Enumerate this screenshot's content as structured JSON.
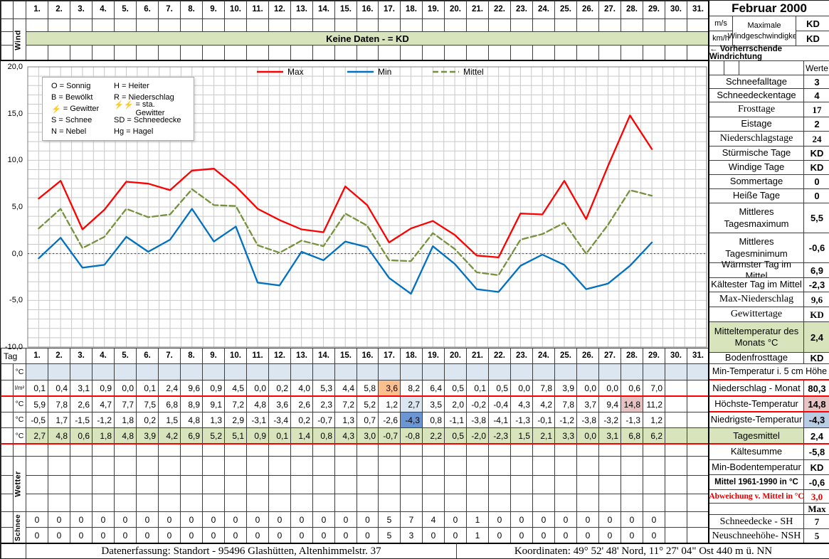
{
  "month_title": "Februar 2000",
  "days": [
    "1.",
    "2.",
    "3.",
    "4.",
    "5.",
    "6.",
    "7.",
    "8.",
    "9.",
    "10.",
    "11.",
    "12.",
    "13.",
    "14.",
    "15.",
    "16.",
    "17.",
    "18.",
    "19.",
    "20.",
    "21.",
    "22.",
    "23.",
    "24.",
    "25.",
    "26.",
    "27.",
    "28.",
    "29.",
    "30.",
    "31."
  ],
  "wind": {
    "label": "Wind",
    "banner": "Keine Daten -  = KD",
    "units": [
      "m/s",
      "km/h"
    ],
    "max_label": "Maximale Windgeschwindigkeit",
    "max_values": [
      "KD",
      "KD"
    ],
    "direction": "←  Vorherrschende Windrichtung"
  },
  "werte_header": "Werte",
  "stats": [
    {
      "label": "Schneefalltage",
      "value": "3"
    },
    {
      "label": "Schneedeckentage",
      "value": "4"
    },
    {
      "label": "Frosttage",
      "value": "17",
      "serif": true
    },
    {
      "label": "Eistage",
      "value": "2"
    },
    {
      "label": "Niederschlagstage",
      "value": "24",
      "serif": true
    },
    {
      "label": "Stürmische Tage",
      "value": "KD"
    },
    {
      "label": "Windige Tage",
      "value": "KD"
    },
    {
      "label": "Sommertage",
      "value": "0"
    },
    {
      "label": "Heiße Tage",
      "value": "0"
    },
    {
      "label": "Mittleres Tagesmaximum",
      "value": "5,5"
    },
    {
      "label": "Mittleres Tagesminimum",
      "value": "-0,6"
    },
    {
      "label": "Wärmster Tag im Mittel",
      "value": "6,9"
    },
    {
      "label": "Kältester Tag im Mittel",
      "value": "-2,3"
    },
    {
      "label": "Max-Niederschlag",
      "value": "9,6",
      "serif": true
    },
    {
      "label": "Gewittertage",
      "value": "KD",
      "serif": true
    },
    {
      "label": "Mitteltemperatur des Monats °C",
      "value": "2,4",
      "green": true
    },
    {
      "label": "Bodenfrosttage",
      "value": "KD"
    }
  ],
  "stats2": [
    {
      "label": "Min-Temperatur i. 5 cm Höhe",
      "span": true
    },
    {
      "label": "Niederschlag - Monat",
      "value": "80,3",
      "redTop": true,
      "redBottom": true
    },
    {
      "label": "Höchste-Temperatur",
      "value": "14,8",
      "valCls": "pink-bg",
      "redBottom": true
    },
    {
      "label": "Niedrigste-Temperatur",
      "value": "-4,3",
      "valCls": "lblue-bg"
    },
    {
      "label": "Tagesmittel",
      "value": "2,4",
      "labelCls": "green-bg",
      "redBottom": true
    },
    {
      "label": "Kältesumme",
      "value": "-5,8"
    },
    {
      "label": "Min-Bodentemperatur",
      "value": "KD"
    },
    {
      "label": "Mittel 1961-1990 in °C",
      "value": "-0,6",
      "bold": true,
      "fit": true
    },
    {
      "label": "Abweichung v. Mittel in °C",
      "value": "3,0",
      "bold": true,
      "red": true,
      "serif": true,
      "fit": true
    },
    {
      "label": "",
      "value": "Max",
      "hdr": true,
      "serif": true
    },
    {
      "label": "Schneedecke -   SH",
      "value": "7",
      "serif": true
    },
    {
      "label": "Neuschneehöhe- NSH",
      "value": "5",
      "serif": true
    }
  ],
  "chart_data": {
    "type": "line",
    "title": "",
    "xlabel": "",
    "ylabel": "",
    "ylim": [
      -10,
      20
    ],
    "ytick_labels": [
      "20,0",
      "15,0",
      "10,0",
      "5,0",
      "0,0",
      "-5,0",
      "-10,0"
    ],
    "x_slots": 31,
    "x": [
      1,
      2,
      3,
      4,
      5,
      6,
      7,
      8,
      9,
      10,
      11,
      12,
      13,
      14,
      15,
      16,
      17,
      18,
      19,
      20,
      21,
      22,
      23,
      24,
      25,
      26,
      27,
      28,
      29
    ],
    "grid": true,
    "legend_position": "top",
    "series": [
      {
        "name": "Max",
        "color": "#FF0000",
        "dashed": false,
        "values": [
          5.9,
          7.8,
          2.6,
          4.7,
          7.7,
          7.5,
          6.8,
          8.9,
          9.1,
          7.2,
          4.8,
          3.6,
          2.6,
          2.3,
          7.2,
          5.2,
          1.2,
          2.7,
          3.5,
          2.0,
          -0.2,
          -0.4,
          4.3,
          4.2,
          7.8,
          3.7,
          9.4,
          14.8,
          11.2
        ]
      },
      {
        "name": "Min",
        "color": "#0070C0",
        "dashed": false,
        "values": [
          -0.5,
          1.7,
          -1.5,
          -1.2,
          1.8,
          0.2,
          1.5,
          4.8,
          1.3,
          2.9,
          -3.1,
          -3.4,
          0.2,
          -0.7,
          1.3,
          0.7,
          -2.6,
          -4.3,
          0.8,
          -1.1,
          -3.8,
          -4.1,
          -1.3,
          -0.1,
          -1.2,
          -3.8,
          -3.2,
          -1.3,
          1.2
        ]
      },
      {
        "name": "Mittel",
        "color": "#76923C",
        "dashed": true,
        "values": [
          2.7,
          4.8,
          0.6,
          1.8,
          4.8,
          3.9,
          4.2,
          6.9,
          5.2,
          5.1,
          0.9,
          0.1,
          1.4,
          0.8,
          4.3,
          3.0,
          -0.7,
          -0.8,
          2.2,
          0.5,
          -2.0,
          -2.3,
          1.5,
          2.1,
          3.3,
          0.0,
          3.1,
          6.8,
          6.2
        ]
      }
    ],
    "weather_codes": [
      [
        {
          "s": "O",
          "t": "= Sonnig"
        },
        {
          "s": "H",
          "t": "= Heiter"
        }
      ],
      [
        {
          "s": "B",
          "t": "= Bewölkt"
        },
        {
          "s": "R",
          "t": "= Niederschlag"
        }
      ],
      [
        {
          "s": "⚡",
          "t": "= Gewitter",
          "red": true
        },
        {
          "s": "⚡⚡",
          "t": "= sta. Gewitter",
          "red": true
        }
      ],
      [
        {
          "s": "S",
          "t": "= Schnee"
        },
        {
          "s": "SD",
          "t": "= Schneedecke"
        }
      ],
      [
        {
          "s": "N",
          "t": "= Nebel"
        },
        {
          "s": "Hg",
          "t": "= Hagel"
        }
      ]
    ]
  },
  "table": {
    "tag_label": "Tag",
    "row_labels": [
      "°C",
      "l/m²",
      "°C",
      "°C",
      "°C"
    ],
    "precip": [
      "0,1",
      "0,4",
      "3,1",
      "0,9",
      "0,0",
      "0,1",
      "2,4",
      "9,6",
      "0,9",
      "4,5",
      "0,0",
      "0,2",
      "4,0",
      "5,3",
      "4,4",
      "5,8",
      "3,6",
      "8,2",
      "6,4",
      "0,5",
      "0,1",
      "0,5",
      "0,0",
      "7,8",
      "3,9",
      "0,0",
      "0,0",
      "0,6",
      "7,0",
      "",
      ""
    ],
    "tmax": [
      "5,9",
      "7,8",
      "2,6",
      "4,7",
      "7,7",
      "7,5",
      "6,8",
      "8,9",
      "9,1",
      "7,2",
      "4,8",
      "3,6",
      "2,6",
      "2,3",
      "7,2",
      "5,2",
      "1,2",
      "2,7",
      "3,5",
      "2,0",
      "-0,2",
      "-0,4",
      "4,3",
      "4,2",
      "7,8",
      "3,7",
      "9,4",
      "14,8",
      "11,2",
      "",
      ""
    ],
    "tmin": [
      "-0,5",
      "1,7",
      "-1,5",
      "-1,2",
      "1,8",
      "0,2",
      "1,5",
      "4,8",
      "1,3",
      "2,9",
      "-3,1",
      "-3,4",
      "0,2",
      "-0,7",
      "1,3",
      "0,7",
      "-2,6",
      "-4,3",
      "0,8",
      "-1,1",
      "-3,8",
      "-4,1",
      "-1,3",
      "-0,1",
      "-1,2",
      "-3,8",
      "-3,2",
      "-1,3",
      "1,2",
      "",
      ""
    ],
    "tmean": [
      "2,7",
      "4,8",
      "0,6",
      "1,8",
      "4,8",
      "3,9",
      "4,2",
      "6,9",
      "5,2",
      "5,1",
      "0,9",
      "0,1",
      "1,4",
      "0,8",
      "4,3",
      "3,0",
      "-0,7",
      "-0,8",
      "2,2",
      "0,5",
      "-2,0",
      "-2,3",
      "1,5",
      "2,1",
      "3,3",
      "0,0",
      "3,1",
      "6,8",
      "6,2",
      "",
      ""
    ],
    "highlights": {
      "precip": {
        "17": "orange"
      },
      "tmax": {
        "18": "lblue",
        "28": "pink"
      },
      "tmin": {
        "18": "blue"
      }
    }
  },
  "wetter_label": "Wetter",
  "schnee_label": "Schnee",
  "schnee_rows": [
    [
      "0",
      "0",
      "0",
      "0",
      "0",
      "0",
      "0",
      "0",
      "0",
      "0",
      "0",
      "0",
      "0",
      "0",
      "0",
      "0",
      "5",
      "7",
      "4",
      "0",
      "1",
      "0",
      "0",
      "0",
      "0",
      "0",
      "0",
      "0",
      "0",
      "",
      ""
    ],
    [
      "0",
      "0",
      "0",
      "0",
      "0",
      "0",
      "0",
      "0",
      "0",
      "0",
      "0",
      "0",
      "0",
      "0",
      "0",
      "0",
      "5",
      "3",
      "0",
      "0",
      "1",
      "0",
      "0",
      "0",
      "0",
      "0",
      "0",
      "0",
      "0",
      "",
      ""
    ]
  ],
  "footer": {
    "left": "Datenerfassung:  Standort -  95496  Glashütten, Altenhimmelstr. 37",
    "right": "Koordinaten:  49° 52' 48' Nord,   11° 27' 04\" Ost   440 m ü. NN"
  }
}
